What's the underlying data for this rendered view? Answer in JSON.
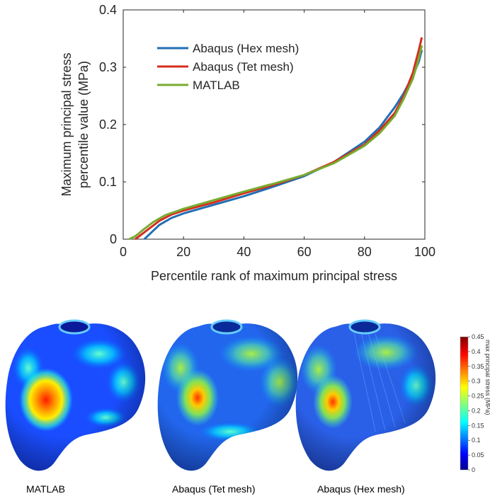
{
  "chart_data": {
    "type": "line",
    "xlabel": "Percentile rank of maximum principal stress",
    "ylabel_lines": [
      "Maximum principal stress",
      "percentile value (MPa)"
    ],
    "xlim": [
      0,
      100
    ],
    "ylim": [
      0,
      0.4
    ],
    "xticks": [
      "0",
      "20",
      "40",
      "60",
      "80",
      "100"
    ],
    "yticks": [
      "0",
      "0.1",
      "0.2",
      "0.3",
      "0.4"
    ],
    "legend_position": "top-left",
    "grid": false,
    "series": [
      {
        "name": "Abaqus (Hex mesh)",
        "color": "#1f6fb4",
        "points": [
          [
            7,
            0
          ],
          [
            9,
            0.01
          ],
          [
            12,
            0.025
          ],
          [
            16,
            0.037
          ],
          [
            20,
            0.045
          ],
          [
            30,
            0.06
          ],
          [
            40,
            0.075
          ],
          [
            50,
            0.092
          ],
          [
            60,
            0.11
          ],
          [
            70,
            0.135
          ],
          [
            80,
            0.17
          ],
          [
            85,
            0.195
          ],
          [
            90,
            0.23
          ],
          [
            93,
            0.255
          ],
          [
            96,
            0.285
          ],
          [
            98,
            0.31
          ],
          [
            99,
            0.33
          ]
        ]
      },
      {
        "name": "Abaqus (Tet mesh)",
        "color": "#d62c1f",
        "points": [
          [
            4,
            0
          ],
          [
            6,
            0.008
          ],
          [
            9,
            0.02
          ],
          [
            12,
            0.032
          ],
          [
            16,
            0.043
          ],
          [
            20,
            0.05
          ],
          [
            30,
            0.064
          ],
          [
            40,
            0.08
          ],
          [
            50,
            0.095
          ],
          [
            60,
            0.112
          ],
          [
            70,
            0.135
          ],
          [
            80,
            0.165
          ],
          [
            85,
            0.19
          ],
          [
            90,
            0.22
          ],
          [
            93,
            0.25
          ],
          [
            96,
            0.29
          ],
          [
            98,
            0.33
          ],
          [
            99,
            0.352
          ]
        ]
      },
      {
        "name": "MATLAB",
        "color": "#77ac30",
        "points": [
          [
            2,
            0
          ],
          [
            4,
            0.005
          ],
          [
            7,
            0.018
          ],
          [
            10,
            0.03
          ],
          [
            14,
            0.042
          ],
          [
            20,
            0.053
          ],
          [
            30,
            0.068
          ],
          [
            40,
            0.083
          ],
          [
            50,
            0.097
          ],
          [
            60,
            0.112
          ],
          [
            70,
            0.133
          ],
          [
            80,
            0.163
          ],
          [
            85,
            0.185
          ],
          [
            90,
            0.215
          ],
          [
            93,
            0.245
          ],
          [
            96,
            0.28
          ],
          [
            98,
            0.315
          ],
          [
            99,
            0.338
          ]
        ]
      }
    ]
  },
  "colorbar": {
    "title": "max principal stress (MPa)",
    "min": 0,
    "max": 0.45,
    "ticks": [
      "0.45",
      "0.4",
      "0.35",
      "0.3",
      "0.25",
      "0.2",
      "0.15",
      "0.1",
      "0.05",
      "0"
    ]
  },
  "shapes": [
    {
      "label": "MATLAB",
      "hotspot": 0.42
    },
    {
      "label": "Abaqus (Tet mesh)",
      "hotspot": 0.3
    },
    {
      "label": "Abaqus (Hex mesh)",
      "hotspot": 0.26
    }
  ]
}
